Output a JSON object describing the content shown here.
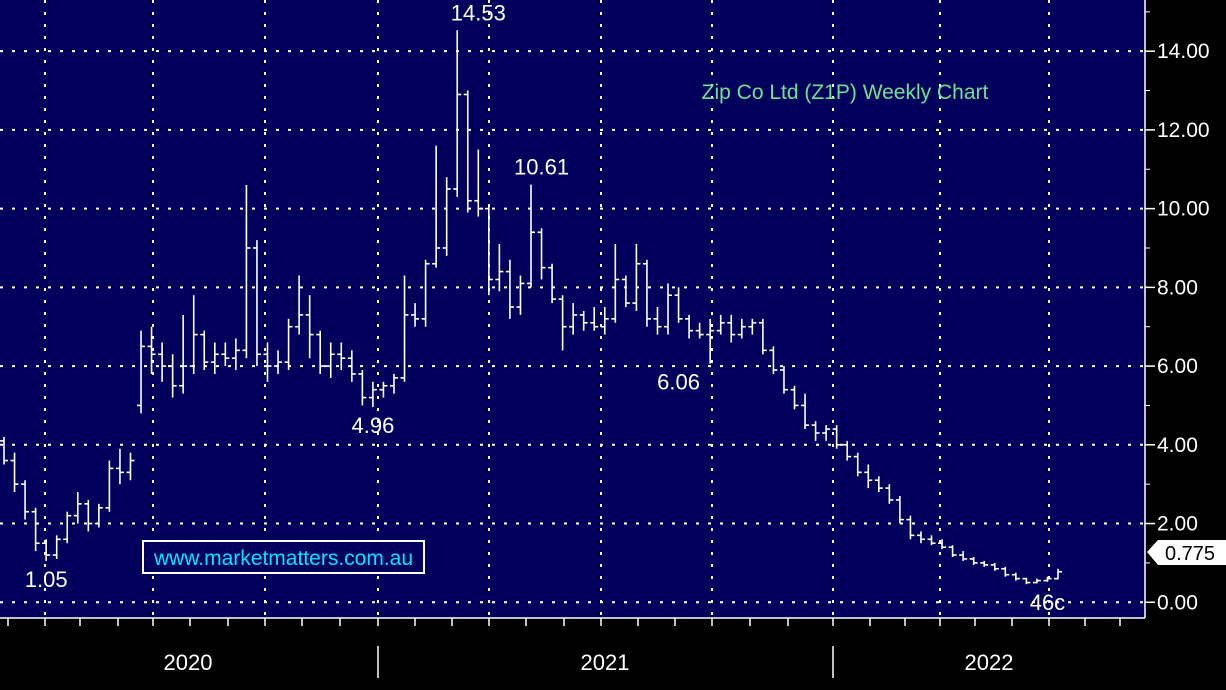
{
  "chart_data": {
    "type": "bar",
    "subtype": "ohlc-weekly",
    "title": "Zip Co Ltd (Z1P) Weekly Chart",
    "watermark": "www.marketmatters.com.au",
    "ylim": [
      -0.4,
      15.3
    ],
    "yticks": [
      0,
      2,
      4,
      6,
      8,
      10,
      12,
      14
    ],
    "ytick_labels": [
      "0.00",
      "2.00",
      "4.00",
      "6.00",
      "8.00",
      "10.00",
      "12.00",
      "14.00"
    ],
    "x_year_labels": [
      "2020",
      "2021",
      "2022"
    ],
    "last_price": "0.775",
    "annotations": [
      {
        "label": "14.53",
        "week": 45,
        "price": 14.53,
        "pos": "above"
      },
      {
        "label": "10.61",
        "week": 51,
        "price": 10.61,
        "pos": "above"
      },
      {
        "label": "4.96",
        "week": 35,
        "price": 4.96,
        "pos": "below"
      },
      {
        "label": "6.06",
        "week": 64,
        "price": 6.06,
        "pos": "below"
      },
      {
        "label": "1.05",
        "week": 4,
        "price": 1.05,
        "pos": "below"
      },
      {
        "label": "46c",
        "week": 99,
        "price": 0.46,
        "pos": "below"
      }
    ],
    "ohlc": [
      [
        4.1,
        4.2,
        3.5,
        3.6
      ],
      [
        3.6,
        3.8,
        2.8,
        3.0
      ],
      [
        3.0,
        3.1,
        2.1,
        2.3
      ],
      [
        2.3,
        2.4,
        1.3,
        1.5
      ],
      [
        1.5,
        1.6,
        1.05,
        1.2
      ],
      [
        1.2,
        1.7,
        1.1,
        1.6
      ],
      [
        1.6,
        2.3,
        1.5,
        2.2
      ],
      [
        2.2,
        2.8,
        2.0,
        2.5
      ],
      [
        2.5,
        2.6,
        1.8,
        2.0
      ],
      [
        2.0,
        2.5,
        1.9,
        2.4
      ],
      [
        2.4,
        3.6,
        2.3,
        3.4
      ],
      [
        3.4,
        3.9,
        3.0,
        3.3
      ],
      [
        3.3,
        3.8,
        3.1,
        3.6
      ],
      [
        5.0,
        6.9,
        4.8,
        6.5
      ],
      [
        6.5,
        7.0,
        5.8,
        6.3
      ],
      [
        6.3,
        6.6,
        5.6,
        6.0
      ],
      [
        6.0,
        6.3,
        5.2,
        5.5
      ],
      [
        5.5,
        7.3,
        5.3,
        6.0
      ],
      [
        6.0,
        7.8,
        5.8,
        6.8
      ],
      [
        6.8,
        6.9,
        5.9,
        6.1
      ],
      [
        6.1,
        6.6,
        5.8,
        6.3
      ],
      [
        6.3,
        6.6,
        6.0,
        6.2
      ],
      [
        6.2,
        6.7,
        5.9,
        6.4
      ],
      [
        6.4,
        10.6,
        6.2,
        9.0
      ],
      [
        9.0,
        9.2,
        6.0,
        6.3
      ],
      [
        6.3,
        6.6,
        5.6,
        6.0
      ],
      [
        6.0,
        6.4,
        5.8,
        6.1
      ],
      [
        6.1,
        7.2,
        5.9,
        7.0
      ],
      [
        7.0,
        8.3,
        6.8,
        7.3
      ],
      [
        7.3,
        7.8,
        6.2,
        6.8
      ],
      [
        6.8,
        6.9,
        5.8,
        6.0
      ],
      [
        6.0,
        6.6,
        5.7,
        6.3
      ],
      [
        6.3,
        6.6,
        5.9,
        6.2
      ],
      [
        6.2,
        6.4,
        5.6,
        5.8
      ],
      [
        5.8,
        5.9,
        5.0,
        5.2
      ],
      [
        5.2,
        5.6,
        4.96,
        5.4
      ],
      [
        5.4,
        5.6,
        5.2,
        5.5
      ],
      [
        5.5,
        5.8,
        5.3,
        5.7
      ],
      [
        5.7,
        8.3,
        5.6,
        7.3
      ],
      [
        7.3,
        7.6,
        7.0,
        7.2
      ],
      [
        7.2,
        8.7,
        7.0,
        8.6
      ],
      [
        8.6,
        11.6,
        8.5,
        9.0
      ],
      [
        9.0,
        10.8,
        8.8,
        10.5
      ],
      [
        10.5,
        14.53,
        10.3,
        12.9
      ],
      [
        12.9,
        13.0,
        9.9,
        10.2
      ],
      [
        10.2,
        11.5,
        9.8,
        10.0
      ],
      [
        10.0,
        10.1,
        7.8,
        8.2
      ],
      [
        8.2,
        9.1,
        7.9,
        8.4
      ],
      [
        8.4,
        8.7,
        7.2,
        7.5
      ],
      [
        7.5,
        8.3,
        7.3,
        8.1
      ],
      [
        8.1,
        10.61,
        8.0,
        9.4
      ],
      [
        9.4,
        9.5,
        8.2,
        8.5
      ],
      [
        8.5,
        8.6,
        7.6,
        7.7
      ],
      [
        7.7,
        7.8,
        6.4,
        7.0
      ],
      [
        7.0,
        7.6,
        6.8,
        7.3
      ],
      [
        7.3,
        7.4,
        6.9,
        7.1
      ],
      [
        7.1,
        7.5,
        6.9,
        7.0
      ],
      [
        7.0,
        7.5,
        6.8,
        7.2
      ],
      [
        7.2,
        9.1,
        7.1,
        8.2
      ],
      [
        8.2,
        8.3,
        7.5,
        7.6
      ],
      [
        7.6,
        9.1,
        7.4,
        8.6
      ],
      [
        8.6,
        8.7,
        7.0,
        7.2
      ],
      [
        7.2,
        7.5,
        6.8,
        7.0
      ],
      [
        7.0,
        8.1,
        6.8,
        7.8
      ],
      [
        7.8,
        8.0,
        7.1,
        7.2
      ],
      [
        7.2,
        7.3,
        6.7,
        6.9
      ],
      [
        6.9,
        7.1,
        6.7,
        6.8
      ],
      [
        6.8,
        7.2,
        6.06,
        6.9
      ],
      [
        6.9,
        7.3,
        6.8,
        7.1
      ],
      [
        7.1,
        7.3,
        6.6,
        6.8
      ],
      [
        6.8,
        7.2,
        6.7,
        7.0
      ],
      [
        7.0,
        7.2,
        6.8,
        7.1
      ],
      [
        7.1,
        7.2,
        6.3,
        6.4
      ],
      [
        6.4,
        6.5,
        5.8,
        5.9
      ],
      [
        5.9,
        6.0,
        5.3,
        5.4
      ],
      [
        5.4,
        5.5,
        4.9,
        5.0
      ],
      [
        5.0,
        5.3,
        4.4,
        4.5
      ],
      [
        4.5,
        4.6,
        4.1,
        4.3
      ],
      [
        4.3,
        4.5,
        4.1,
        4.4
      ],
      [
        4.4,
        4.5,
        3.9,
        4.0
      ],
      [
        4.0,
        4.1,
        3.6,
        3.7
      ],
      [
        3.7,
        3.8,
        3.2,
        3.3
      ],
      [
        3.3,
        3.5,
        2.9,
        3.1
      ],
      [
        3.1,
        3.2,
        2.8,
        2.9
      ],
      [
        2.9,
        3.0,
        2.5,
        2.6
      ],
      [
        2.6,
        2.7,
        2.0,
        2.1
      ],
      [
        2.1,
        2.2,
        1.6,
        1.7
      ],
      [
        1.7,
        1.8,
        1.5,
        1.6
      ],
      [
        1.6,
        1.7,
        1.45,
        1.5
      ],
      [
        1.5,
        1.6,
        1.35,
        1.4
      ],
      [
        1.4,
        1.45,
        1.15,
        1.2
      ],
      [
        1.2,
        1.3,
        1.05,
        1.1
      ],
      [
        1.1,
        1.15,
        0.95,
        1.0
      ],
      [
        1.0,
        1.05,
        0.9,
        0.95
      ],
      [
        0.95,
        1.0,
        0.8,
        0.85
      ],
      [
        0.85,
        0.9,
        0.65,
        0.7
      ],
      [
        0.7,
        0.75,
        0.55,
        0.6
      ],
      [
        0.6,
        0.62,
        0.46,
        0.5
      ],
      [
        0.5,
        0.6,
        0.48,
        0.55
      ],
      [
        0.55,
        0.65,
        0.52,
        0.6
      ],
      [
        0.6,
        0.85,
        0.58,
        0.775
      ]
    ]
  }
}
